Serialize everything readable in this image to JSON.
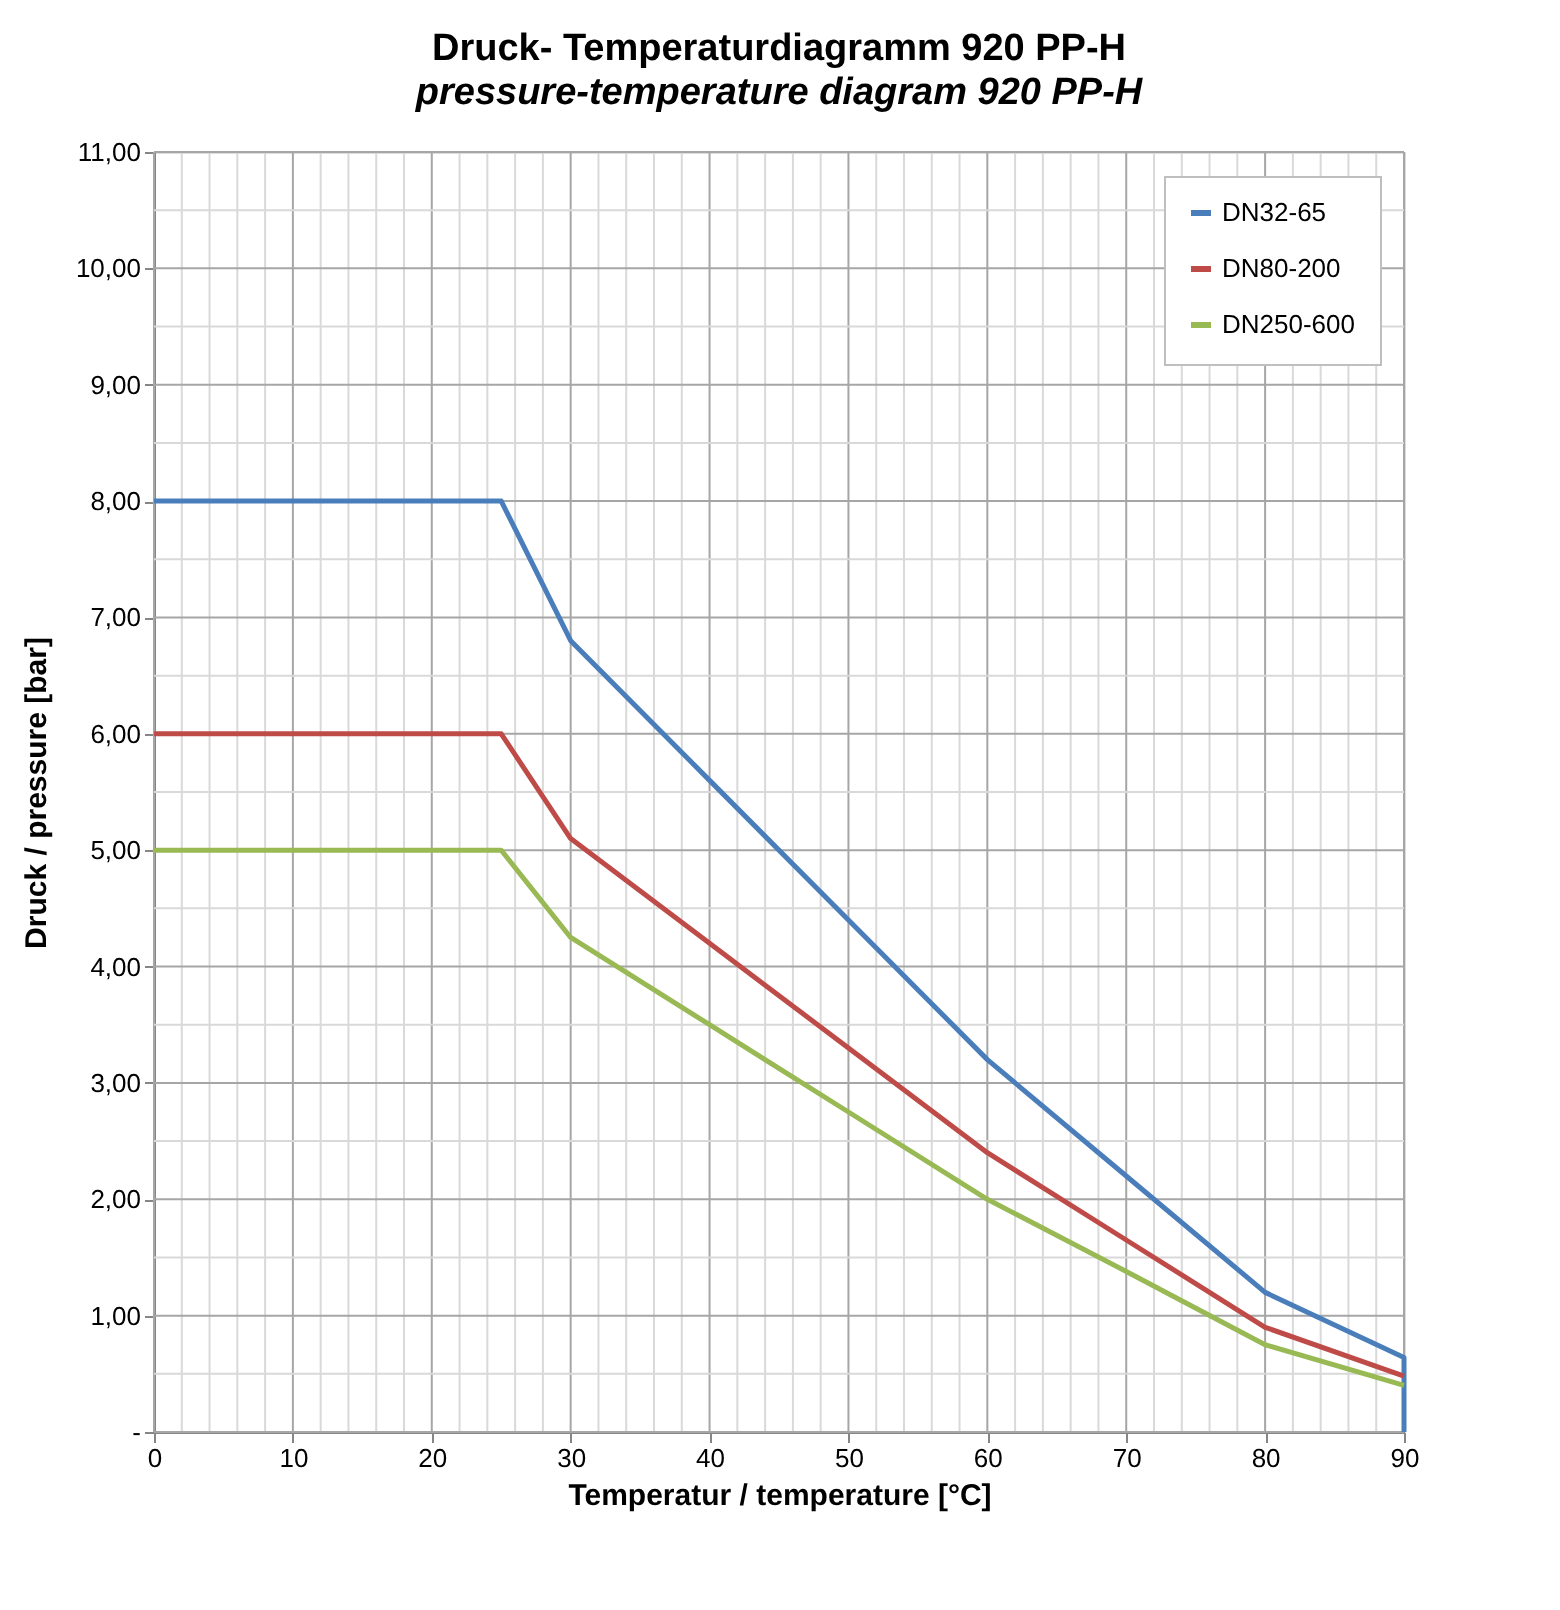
{
  "chart_data": {
    "type": "line",
    "title": "Druck- Temperaturdiagramm 920 PP-H",
    "subtitle": "pressure-temperature  diagram 920 PP-H",
    "xlabel": "Temperatur / temperature  [°C]",
    "ylabel": "Druck / pressure [bar]",
    "series": [
      {
        "name": "DN32-65",
        "color": "#4a7ebb",
        "x": [
          0,
          25,
          30,
          40,
          50,
          60,
          70,
          80,
          90,
          90
        ],
        "values": [
          8,
          8,
          6.8,
          5.6,
          4.4,
          3.2,
          2.2,
          1.2,
          0.64,
          0
        ]
      },
      {
        "name": "DN80-200",
        "color": "#be4b48",
        "x": [
          0,
          25,
          30,
          40,
          50,
          60,
          70,
          80,
          90
        ],
        "values": [
          6,
          6,
          5.1,
          4.2,
          3.3,
          2.4,
          1.65,
          0.9,
          0.48
        ]
      },
      {
        "name": "DN250-600",
        "color": "#98b954",
        "x": [
          0,
          25,
          30,
          40,
          50,
          60,
          70,
          80,
          90
        ],
        "values": [
          5,
          5,
          4.25,
          3.5,
          2.75,
          2.0,
          1.38,
          0.75,
          0.4
        ]
      }
    ],
    "xlim": [
      0,
      90
    ],
    "ylim": [
      0,
      11
    ],
    "xticks": [
      0,
      {
        "value": 2,
        "label": null
      },
      {
        "value": 4,
        "label": null
      },
      {
        "value": 6,
        "label": null
      },
      {
        "value": 8,
        "label": null
      },
      10,
      {
        "value": 12,
        "label": null
      },
      {
        "value": 14,
        "label": null
      },
      {
        "value": 16,
        "label": null
      },
      {
        "value": 18,
        "label": null
      },
      20,
      {
        "value": 22,
        "label": null
      },
      {
        "value": 24,
        "label": null
      },
      {
        "value": 26,
        "label": null
      },
      {
        "value": 28,
        "label": null
      },
      30,
      {
        "value": 32,
        "label": null
      },
      {
        "value": 34,
        "label": null
      },
      {
        "value": 36,
        "label": null
      },
      {
        "value": 38,
        "label": null
      },
      40,
      {
        "value": 42,
        "label": null
      },
      {
        "value": 44,
        "label": null
      },
      {
        "value": 46,
        "label": null
      },
      {
        "value": 48,
        "label": null
      },
      50,
      {
        "value": 52,
        "label": null
      },
      {
        "value": 54,
        "label": null
      },
      {
        "value": 56,
        "label": null
      },
      {
        "value": 58,
        "label": null
      },
      60,
      {
        "value": 62,
        "label": null
      },
      {
        "value": 64,
        "label": null
      },
      {
        "value": 66,
        "label": null
      },
      {
        "value": 68,
        "label": null
      },
      70,
      {
        "value": 72,
        "label": null
      },
      {
        "value": 74,
        "label": null
      },
      {
        "value": 76,
        "label": null
      },
      {
        "value": 78,
        "label": null
      },
      80,
      {
        "value": 82,
        "label": null
      },
      {
        "value": 84,
        "label": null
      },
      {
        "value": 86,
        "label": null
      },
      {
        "value": 88,
        "label": null
      },
      90
    ],
    "yticks": [
      {
        "value": 0,
        "label": "-"
      },
      {
        "value": 0.5,
        "label": null
      },
      {
        "value": 1,
        "label": "1,00"
      },
      {
        "value": 1.5,
        "label": null
      },
      {
        "value": 2,
        "label": "2,00"
      },
      {
        "value": 2.5,
        "label": null
      },
      {
        "value": 3,
        "label": "3,00"
      },
      {
        "value": 3.5,
        "label": null
      },
      {
        "value": 4,
        "label": "4,00"
      },
      {
        "value": 4.5,
        "label": null
      },
      {
        "value": 5,
        "label": "5,00"
      },
      {
        "value": 5.5,
        "label": null
      },
      {
        "value": 6,
        "label": "6,00"
      },
      {
        "value": 6.5,
        "label": null
      },
      {
        "value": 7,
        "label": "7,00"
      },
      {
        "value": 7.5,
        "label": null
      },
      {
        "value": 8,
        "label": "8,00"
      },
      {
        "value": 8.5,
        "label": null
      },
      {
        "value": 9,
        "label": "9,00"
      },
      {
        "value": 9.5,
        "label": null
      },
      {
        "value": 10,
        "label": "10,00"
      },
      {
        "value": 10.5,
        "label": null
      },
      {
        "value": 11,
        "label": "11,00"
      }
    ],
    "grid": true,
    "legend": "top right",
    "marker": "none",
    "line_style": "solid"
  }
}
